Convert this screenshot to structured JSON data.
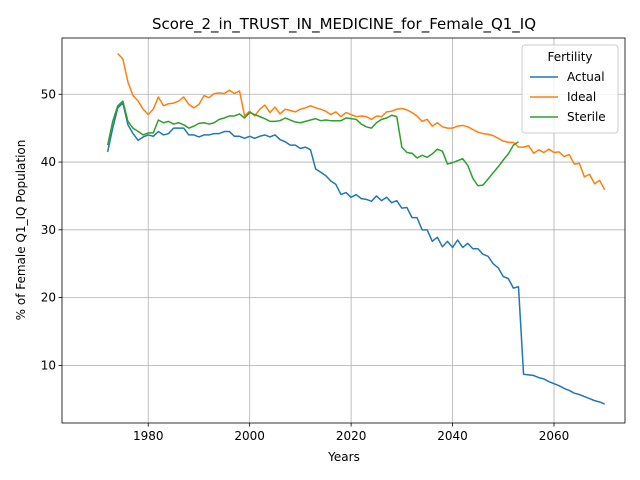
{
  "chart_data": {
    "type": "line",
    "title": "Score_2_in_TRUST_IN_MEDICINE_for_Female_Q1_IQ",
    "xlabel": "Years",
    "ylabel": "% of Female Q1_IQ Population",
    "xlim": [
      1963,
      2074
    ],
    "ylim": [
      1.5,
      58.3
    ],
    "xticks": [
      1980,
      2000,
      2020,
      2040,
      2060
    ],
    "yticks": [
      10,
      20,
      30,
      40,
      50
    ],
    "grid": true,
    "legend": {
      "title": "Fertility",
      "position": "top-right"
    },
    "series": [
      {
        "name": "Actual",
        "color": "#1f77b4",
        "points": [
          [
            1972,
            41.5
          ],
          [
            1973,
            45
          ],
          [
            1974,
            48
          ],
          [
            1975,
            48.7
          ],
          [
            1976,
            45.5
          ],
          [
            1977,
            44.2
          ],
          [
            1978,
            43.2
          ],
          [
            1979,
            43.7
          ],
          [
            1980,
            44
          ],
          [
            1981,
            43.8
          ],
          [
            1982,
            44.5
          ],
          [
            1983,
            44
          ],
          [
            1984,
            44.2
          ],
          [
            1985,
            45
          ],
          [
            1986,
            45
          ],
          [
            1987,
            45
          ],
          [
            1988,
            44
          ],
          [
            1989,
            44
          ],
          [
            1990,
            43.7
          ],
          [
            1991,
            44
          ],
          [
            1992,
            44
          ],
          [
            1993,
            44.2
          ],
          [
            1994,
            44.2
          ],
          [
            1995,
            44.5
          ],
          [
            1996,
            44.5
          ],
          [
            1997,
            43.8
          ],
          [
            1998,
            43.8
          ],
          [
            1999,
            43.5
          ],
          [
            2000,
            43.8
          ],
          [
            2001,
            43.5
          ],
          [
            2002,
            43.8
          ],
          [
            2003,
            44
          ],
          [
            2004,
            43.7
          ],
          [
            2005,
            44
          ],
          [
            2006,
            43.3
          ],
          [
            2007,
            43
          ],
          [
            2008,
            42.5
          ],
          [
            2009,
            42.5
          ],
          [
            2010,
            42
          ],
          [
            2011,
            42.2
          ],
          [
            2012,
            41.8
          ],
          [
            2013,
            39
          ],
          [
            2014,
            38.5
          ],
          [
            2015,
            38
          ],
          [
            2016,
            37.2
          ],
          [
            2017,
            36.7
          ],
          [
            2018,
            35.2
          ],
          [
            2019,
            35.5
          ],
          [
            2020,
            34.8
          ],
          [
            2021,
            35.2
          ],
          [
            2022,
            34.6
          ],
          [
            2023,
            34.5
          ],
          [
            2024,
            34.2
          ],
          [
            2025,
            35
          ],
          [
            2026,
            34.3
          ],
          [
            2027,
            34.8
          ],
          [
            2028,
            34
          ],
          [
            2029,
            34.3
          ],
          [
            2030,
            33.2
          ],
          [
            2031,
            33.3
          ],
          [
            2032,
            31.8
          ],
          [
            2033,
            31.8
          ],
          [
            2034,
            30
          ],
          [
            2035,
            30
          ],
          [
            2036,
            28.3
          ],
          [
            2037,
            28.9
          ],
          [
            2038,
            27.5
          ],
          [
            2039,
            28.3
          ],
          [
            2040,
            27.4
          ],
          [
            2041,
            28.5
          ],
          [
            2042,
            27.4
          ],
          [
            2043,
            28
          ],
          [
            2044,
            27.2
          ],
          [
            2045,
            27.2
          ],
          [
            2046,
            26.4
          ],
          [
            2047,
            26.1
          ],
          [
            2048,
            25
          ],
          [
            2049,
            24.4
          ],
          [
            2050,
            23.1
          ],
          [
            2051,
            22.8
          ],
          [
            2052,
            21.4
          ],
          [
            2053,
            21.6
          ],
          [
            2054,
            8.7
          ],
          [
            2055,
            8.6
          ],
          [
            2056,
            8.5
          ],
          [
            2057,
            8.2
          ],
          [
            2058,
            8
          ],
          [
            2059,
            7.6
          ],
          [
            2060,
            7.3
          ],
          [
            2061,
            7
          ],
          [
            2062,
            6.6
          ],
          [
            2063,
            6.3
          ],
          [
            2064,
            5.9
          ],
          [
            2065,
            5.7
          ],
          [
            2066,
            5.4
          ],
          [
            2067,
            5.1
          ],
          [
            2068,
            4.8
          ],
          [
            2069,
            4.6
          ],
          [
            2070,
            4.3
          ]
        ]
      },
      {
        "name": "Ideal",
        "color": "#ff7f0e",
        "points": [
          [
            1974,
            56
          ],
          [
            1975,
            55.2
          ],
          [
            1976,
            51.8
          ],
          [
            1977,
            49.8
          ],
          [
            1978,
            49
          ],
          [
            1979,
            47.8
          ],
          [
            1980,
            47
          ],
          [
            1981,
            47.8
          ],
          [
            1982,
            49.6
          ],
          [
            1983,
            48.3
          ],
          [
            1984,
            48.6
          ],
          [
            1985,
            48.7
          ],
          [
            1986,
            49
          ],
          [
            1987,
            49.6
          ],
          [
            1988,
            48.5
          ],
          [
            1989,
            48
          ],
          [
            1990,
            48.5
          ],
          [
            1991,
            49.8
          ],
          [
            1992,
            49.5
          ],
          [
            1993,
            50.1
          ],
          [
            1994,
            50.2
          ],
          [
            1995,
            50.1
          ],
          [
            1996,
            50.6
          ],
          [
            1997,
            50.1
          ],
          [
            1998,
            50.5
          ],
          [
            1999,
            46.8
          ],
          [
            2000,
            47.5
          ],
          [
            2001,
            46.8
          ],
          [
            2002,
            47.8
          ],
          [
            2003,
            48.4
          ],
          [
            2004,
            47.3
          ],
          [
            2005,
            48.1
          ],
          [
            2006,
            47.1
          ],
          [
            2007,
            47.8
          ],
          [
            2008,
            47.6
          ],
          [
            2009,
            47.4
          ],
          [
            2010,
            47.8
          ],
          [
            2011,
            48
          ],
          [
            2012,
            48.3
          ],
          [
            2013,
            48
          ],
          [
            2014,
            47.8
          ],
          [
            2015,
            47.5
          ],
          [
            2016,
            47
          ],
          [
            2017,
            47.4
          ],
          [
            2018,
            46.7
          ],
          [
            2019,
            47.3
          ],
          [
            2020,
            47
          ],
          [
            2021,
            46.7
          ],
          [
            2022,
            46.8
          ],
          [
            2023,
            46.7
          ],
          [
            2024,
            46.3
          ],
          [
            2025,
            46.8
          ],
          [
            2026,
            46.7
          ],
          [
            2027,
            47.4
          ],
          [
            2028,
            47.5
          ],
          [
            2029,
            47.8
          ],
          [
            2030,
            47.9
          ],
          [
            2031,
            47.7
          ],
          [
            2032,
            47.3
          ],
          [
            2033,
            46.8
          ],
          [
            2034,
            46
          ],
          [
            2035,
            46.3
          ],
          [
            2036,
            45.3
          ],
          [
            2037,
            45.8
          ],
          [
            2038,
            45.2
          ],
          [
            2039,
            45
          ],
          [
            2040,
            45
          ],
          [
            2041,
            45.3
          ],
          [
            2042,
            45.4
          ],
          [
            2043,
            45.2
          ],
          [
            2044,
            44.8
          ],
          [
            2045,
            44.4
          ],
          [
            2046,
            44.2
          ],
          [
            2047,
            44.1
          ],
          [
            2048,
            43.9
          ],
          [
            2049,
            43.5
          ],
          [
            2050,
            43.1
          ],
          [
            2051,
            42.9
          ],
          [
            2052,
            42.9
          ],
          [
            2053,
            42.2
          ],
          [
            2054,
            42.2
          ],
          [
            2055,
            42.4
          ],
          [
            2056,
            41.3
          ],
          [
            2057,
            41.8
          ],
          [
            2058,
            41.4
          ],
          [
            2059,
            41.9
          ],
          [
            2060,
            41.4
          ],
          [
            2061,
            41.5
          ],
          [
            2062,
            40.8
          ],
          [
            2063,
            41.1
          ],
          [
            2064,
            39.7
          ],
          [
            2065,
            39.8
          ],
          [
            2066,
            37.8
          ],
          [
            2067,
            38.2
          ],
          [
            2068,
            36.8
          ],
          [
            2069,
            37.3
          ],
          [
            2070,
            35.9
          ]
        ]
      },
      {
        "name": "Sterile",
        "color": "#2ca02c",
        "points": [
          [
            1972,
            42.5
          ],
          [
            1973,
            46
          ],
          [
            1974,
            48.3
          ],
          [
            1975,
            49
          ],
          [
            1976,
            46
          ],
          [
            1977,
            45
          ],
          [
            1978,
            44.5
          ],
          [
            1979,
            44
          ],
          [
            1980,
            44.3
          ],
          [
            1981,
            44.3
          ],
          [
            1982,
            46.2
          ],
          [
            1983,
            45.8
          ],
          [
            1984,
            46
          ],
          [
            1985,
            45.6
          ],
          [
            1986,
            45.8
          ],
          [
            1987,
            45.5
          ],
          [
            1988,
            45
          ],
          [
            1989,
            45.3
          ],
          [
            1990,
            45.7
          ],
          [
            1991,
            45.8
          ],
          [
            1992,
            45.6
          ],
          [
            1993,
            45.8
          ],
          [
            1994,
            46.3
          ],
          [
            1995,
            46.5
          ],
          [
            1996,
            46.8
          ],
          [
            1997,
            46.8
          ],
          [
            1998,
            47.1
          ],
          [
            1999,
            46.5
          ],
          [
            2000,
            47.3
          ],
          [
            2001,
            47
          ],
          [
            2002,
            46.7
          ],
          [
            2003,
            46.4
          ],
          [
            2004,
            46
          ],
          [
            2005,
            46
          ],
          [
            2006,
            46.1
          ],
          [
            2007,
            46.5
          ],
          [
            2008,
            46.2
          ],
          [
            2009,
            45.9
          ],
          [
            2010,
            45.8
          ],
          [
            2011,
            46
          ],
          [
            2012,
            46.2
          ],
          [
            2013,
            46.4
          ],
          [
            2014,
            46.1
          ],
          [
            2015,
            46.2
          ],
          [
            2016,
            46.1
          ],
          [
            2017,
            46.1
          ],
          [
            2018,
            46.1
          ],
          [
            2019,
            46.5
          ],
          [
            2020,
            46.4
          ],
          [
            2021,
            46.3
          ],
          [
            2022,
            45.6
          ],
          [
            2023,
            45.2
          ],
          [
            2024,
            45
          ],
          [
            2025,
            45.8
          ],
          [
            2026,
            46.3
          ],
          [
            2027,
            46.5
          ],
          [
            2028,
            46.9
          ],
          [
            2029,
            46.7
          ],
          [
            2030,
            42.2
          ],
          [
            2031,
            41.4
          ],
          [
            2032,
            41.3
          ],
          [
            2033,
            40.6
          ],
          [
            2034,
            41
          ],
          [
            2035,
            40.7
          ],
          [
            2036,
            41.2
          ],
          [
            2037,
            41.9
          ],
          [
            2038,
            41.6
          ],
          [
            2039,
            39.7
          ],
          [
            2040,
            39.9
          ],
          [
            2041,
            40.2
          ],
          [
            2042,
            40.5
          ],
          [
            2043,
            39.5
          ],
          [
            2044,
            37.6
          ],
          [
            2045,
            36.5
          ],
          [
            2046,
            36.6
          ],
          [
            2047,
            37.5
          ],
          [
            2048,
            38.4
          ],
          [
            2049,
            39.3
          ],
          [
            2050,
            40.3
          ],
          [
            2051,
            41.2
          ],
          [
            2052,
            42.5
          ],
          [
            2053,
            43
          ]
        ]
      }
    ]
  }
}
